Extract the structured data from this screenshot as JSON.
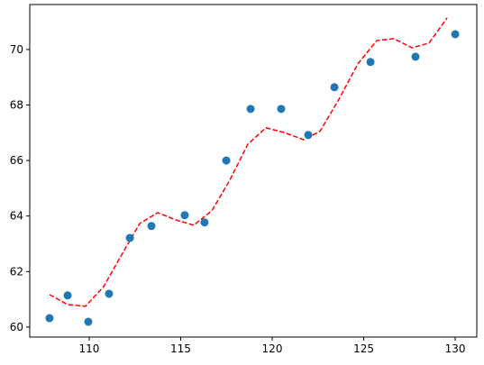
{
  "chart_data": {
    "type": "scatter",
    "xlim": [
      106.75,
      131.18
    ],
    "ylim": [
      59.64,
      71.62
    ],
    "xticks": [
      110,
      115,
      120,
      125,
      130
    ],
    "yticks": [
      60,
      62,
      64,
      66,
      68,
      70
    ],
    "series": [
      {
        "type": "scatter",
        "color": "#1f77b4",
        "x": [
          107.83,
          108.82,
          109.95,
          111.08,
          112.22,
          113.4,
          115.22,
          116.3,
          117.49,
          118.82,
          120.49,
          121.97,
          123.4,
          125.37,
          127.83,
          130.0
        ],
        "values": [
          60.32,
          61.14,
          60.19,
          61.2,
          63.21,
          63.64,
          64.03,
          63.77,
          66.0,
          67.86,
          67.86,
          66.92,
          68.64,
          69.55,
          69.74,
          70.55
        ]
      },
      {
        "type": "line",
        "color": "#ff0000",
        "dashed": true,
        "x": [
          107.83,
          108.82,
          109.8,
          110.79,
          111.77,
          112.76,
          113.74,
          114.73,
          115.71,
          116.7,
          117.68,
          118.67,
          119.66,
          120.64,
          121.72,
          122.61,
          123.65,
          124.68,
          125.71,
          126.65,
          127.64,
          128.57,
          129.56
        ],
        "values": [
          61.17,
          60.81,
          60.75,
          61.46,
          62.6,
          63.73,
          64.12,
          63.86,
          63.67,
          64.19,
          65.29,
          66.59,
          67.18,
          67.01,
          66.75,
          67.05,
          68.21,
          69.48,
          70.32,
          70.39,
          70.06,
          70.23,
          71.14
        ]
      }
    ]
  }
}
